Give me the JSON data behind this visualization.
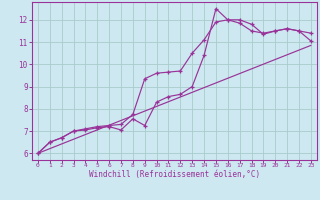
{
  "xlabel": "Windchill (Refroidissement éolien,°C)",
  "background_color": "#cde8f0",
  "grid_color": "#aacccc",
  "line_color": "#993399",
  "spine_color": "#993399",
  "xlim": [
    -0.5,
    23.5
  ],
  "ylim": [
    5.7,
    12.8
  ],
  "xticks": [
    0,
    1,
    2,
    3,
    4,
    5,
    6,
    7,
    8,
    9,
    10,
    11,
    12,
    13,
    14,
    15,
    16,
    17,
    18,
    19,
    20,
    21,
    22,
    23
  ],
  "yticks": [
    6,
    7,
    8,
    9,
    10,
    11,
    12
  ],
  "line1_x": [
    0,
    1,
    2,
    3,
    4,
    5,
    6,
    7,
    8,
    9,
    10,
    11,
    12,
    13,
    14,
    15,
    16,
    17,
    18,
    19,
    20,
    21,
    22,
    23
  ],
  "line1_y": [
    6.0,
    6.5,
    6.7,
    7.0,
    7.05,
    7.15,
    7.2,
    7.05,
    7.55,
    7.25,
    8.3,
    8.55,
    8.65,
    9.0,
    10.4,
    12.5,
    12.0,
    12.0,
    11.8,
    11.35,
    11.5,
    11.6,
    11.5,
    11.4
  ],
  "line2_x": [
    0,
    1,
    2,
    3,
    4,
    5,
    6,
    7,
    8,
    9,
    10,
    11,
    12,
    13,
    14,
    15,
    16,
    17,
    18,
    19,
    20,
    21,
    22,
    23
  ],
  "line2_y": [
    6.0,
    6.5,
    6.7,
    7.0,
    7.1,
    7.2,
    7.25,
    7.3,
    7.75,
    9.35,
    9.6,
    9.65,
    9.7,
    10.5,
    11.1,
    11.9,
    12.0,
    11.85,
    11.5,
    11.4,
    11.5,
    11.6,
    11.5,
    11.05
  ],
  "line3_x": [
    0,
    23
  ],
  "line3_y": [
    6.0,
    10.85
  ]
}
